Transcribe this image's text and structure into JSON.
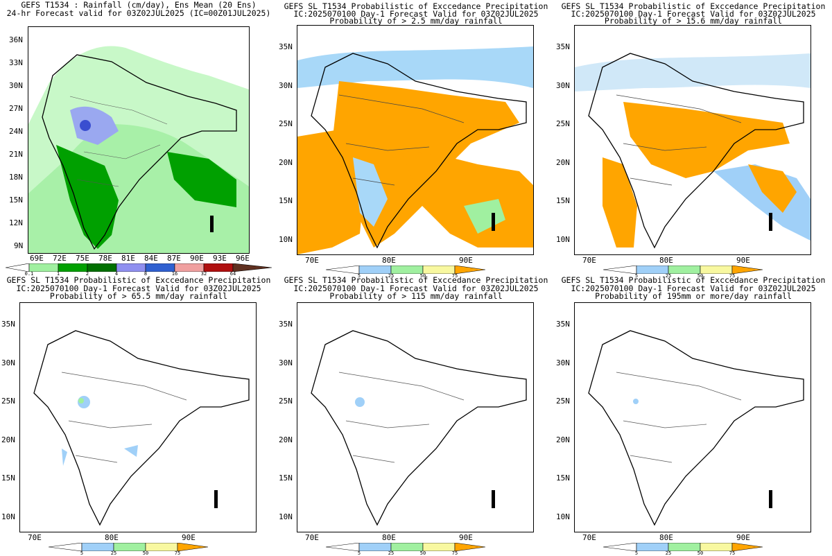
{
  "panels": [
    {
      "id": "p1",
      "title_lines": [
        "GEFS T1534 : Rainfall (cm/day), Ens Mean (20 Ens)",
        "24-hr Forecast valid for 03Z02JUL2025 (IC=00Z01JUL2025)"
      ],
      "x_ticks": [
        "69E",
        "72E",
        "75E",
        "78E",
        "81E",
        "84E",
        "87E",
        "90E",
        "93E",
        "96E"
      ],
      "y_ticks": [
        "36N",
        "33N",
        "30N",
        "27N",
        "24N",
        "21N",
        "18N",
        "15N",
        "12N",
        "9N"
      ],
      "colorbar": {
        "labels": [
          "0.1",
          "1",
          "2",
          "4",
          "8",
          "16",
          "32",
          "64"
        ],
        "colors": [
          "#ffffff",
          "#a0f0a0",
          "#00a000",
          "#007000",
          "#9090f0",
          "#3060d0",
          "#f0a0a0",
          "#e05050",
          "#b01010",
          "#800000",
          "#603020"
        ]
      }
    },
    {
      "id": "p2",
      "title_lines": [
        "GEFS SL T1534 Probabilistic of Exccedance Precipitation",
        "IC:2025070100 Day-1 Forecast Valid for 03Z02JUL2025",
        "Probability of > 2.5 mm/day rainfall"
      ],
      "x_ticks": [
        "70E",
        "80E",
        "90E"
      ],
      "y_ticks": [
        "35N",
        "30N",
        "25N",
        "20N",
        "15N",
        "10N"
      ],
      "colorbar": {
        "labels": [
          "5",
          "25",
          "50",
          "75"
        ],
        "colors": [
          "#ffffff",
          "#a0d0f8",
          "#a0f0a0",
          "#f8f8a0",
          "#ffa500"
        ]
      }
    },
    {
      "id": "p3",
      "title_lines": [
        "GEFS SL T1534 Probabilistic of Exccedance Precipitation",
        "IC:2025070100 Day-1 Forecast Valid for 03Z02JUL2025",
        "Probability of > 15.6 mm/day rainfall"
      ],
      "x_ticks": [
        "70E",
        "80E",
        "90E"
      ],
      "y_ticks": [
        "35N",
        "30N",
        "25N",
        "20N",
        "15N",
        "10N"
      ],
      "colorbar": {
        "labels": [
          "5",
          "25",
          "50",
          "75"
        ],
        "colors": [
          "#ffffff",
          "#a0d0f8",
          "#a0f0a0",
          "#f8f8a0",
          "#ffa500"
        ]
      }
    },
    {
      "id": "p4",
      "title_lines": [
        "GEFS SL T1534 Probabilistic of Exccedance Precipitation",
        "IC:2025070100 Day-1 Forecast Valid for 03Z02JUL2025",
        "Probability of > 65.5 mm/day rainfall"
      ],
      "x_ticks": [
        "70E",
        "80E",
        "90E"
      ],
      "y_ticks": [
        "35N",
        "30N",
        "25N",
        "20N",
        "15N",
        "10N"
      ],
      "colorbar": {
        "labels": [
          "5",
          "25",
          "50",
          "75"
        ],
        "colors": [
          "#ffffff",
          "#a0d0f8",
          "#a0f0a0",
          "#f8f8a0",
          "#ffa500"
        ]
      }
    },
    {
      "id": "p5",
      "title_lines": [
        "GEFS SL T1534 Probabilistic of Exccedance Precipitation",
        "IC:2025070100 Day-1 Forecast Valid for 03Z02JUL2025",
        "Probability of > 115 mm/day rainfall"
      ],
      "x_ticks": [
        "70E",
        "80E",
        "90E"
      ],
      "y_ticks": [
        "35N",
        "30N",
        "25N",
        "20N",
        "15N",
        "10N"
      ],
      "colorbar": {
        "labels": [
          "5",
          "25",
          "50",
          "75"
        ],
        "colors": [
          "#ffffff",
          "#a0d0f8",
          "#a0f0a0",
          "#f8f8a0",
          "#ffa500"
        ]
      }
    },
    {
      "id": "p6",
      "title_lines": [
        "GEFS SL T1534 Probabilistic of Exccedance Precipitation",
        "IC:2025070100 Day-1 Forecast Valid for 03Z02JUL2025",
        "Probability of 195mm or more/day rainfall"
      ],
      "x_ticks": [
        "70E",
        "80E",
        "90E"
      ],
      "y_ticks": [
        "35N",
        "30N",
        "25N",
        "20N",
        "15N",
        "10N"
      ],
      "colorbar": {
        "labels": [
          "5",
          "25",
          "50",
          "75"
        ],
        "colors": [
          "#ffffff",
          "#a0d0f8",
          "#a0f0a0",
          "#f8f8a0",
          "#ffa500"
        ]
      }
    }
  ]
}
